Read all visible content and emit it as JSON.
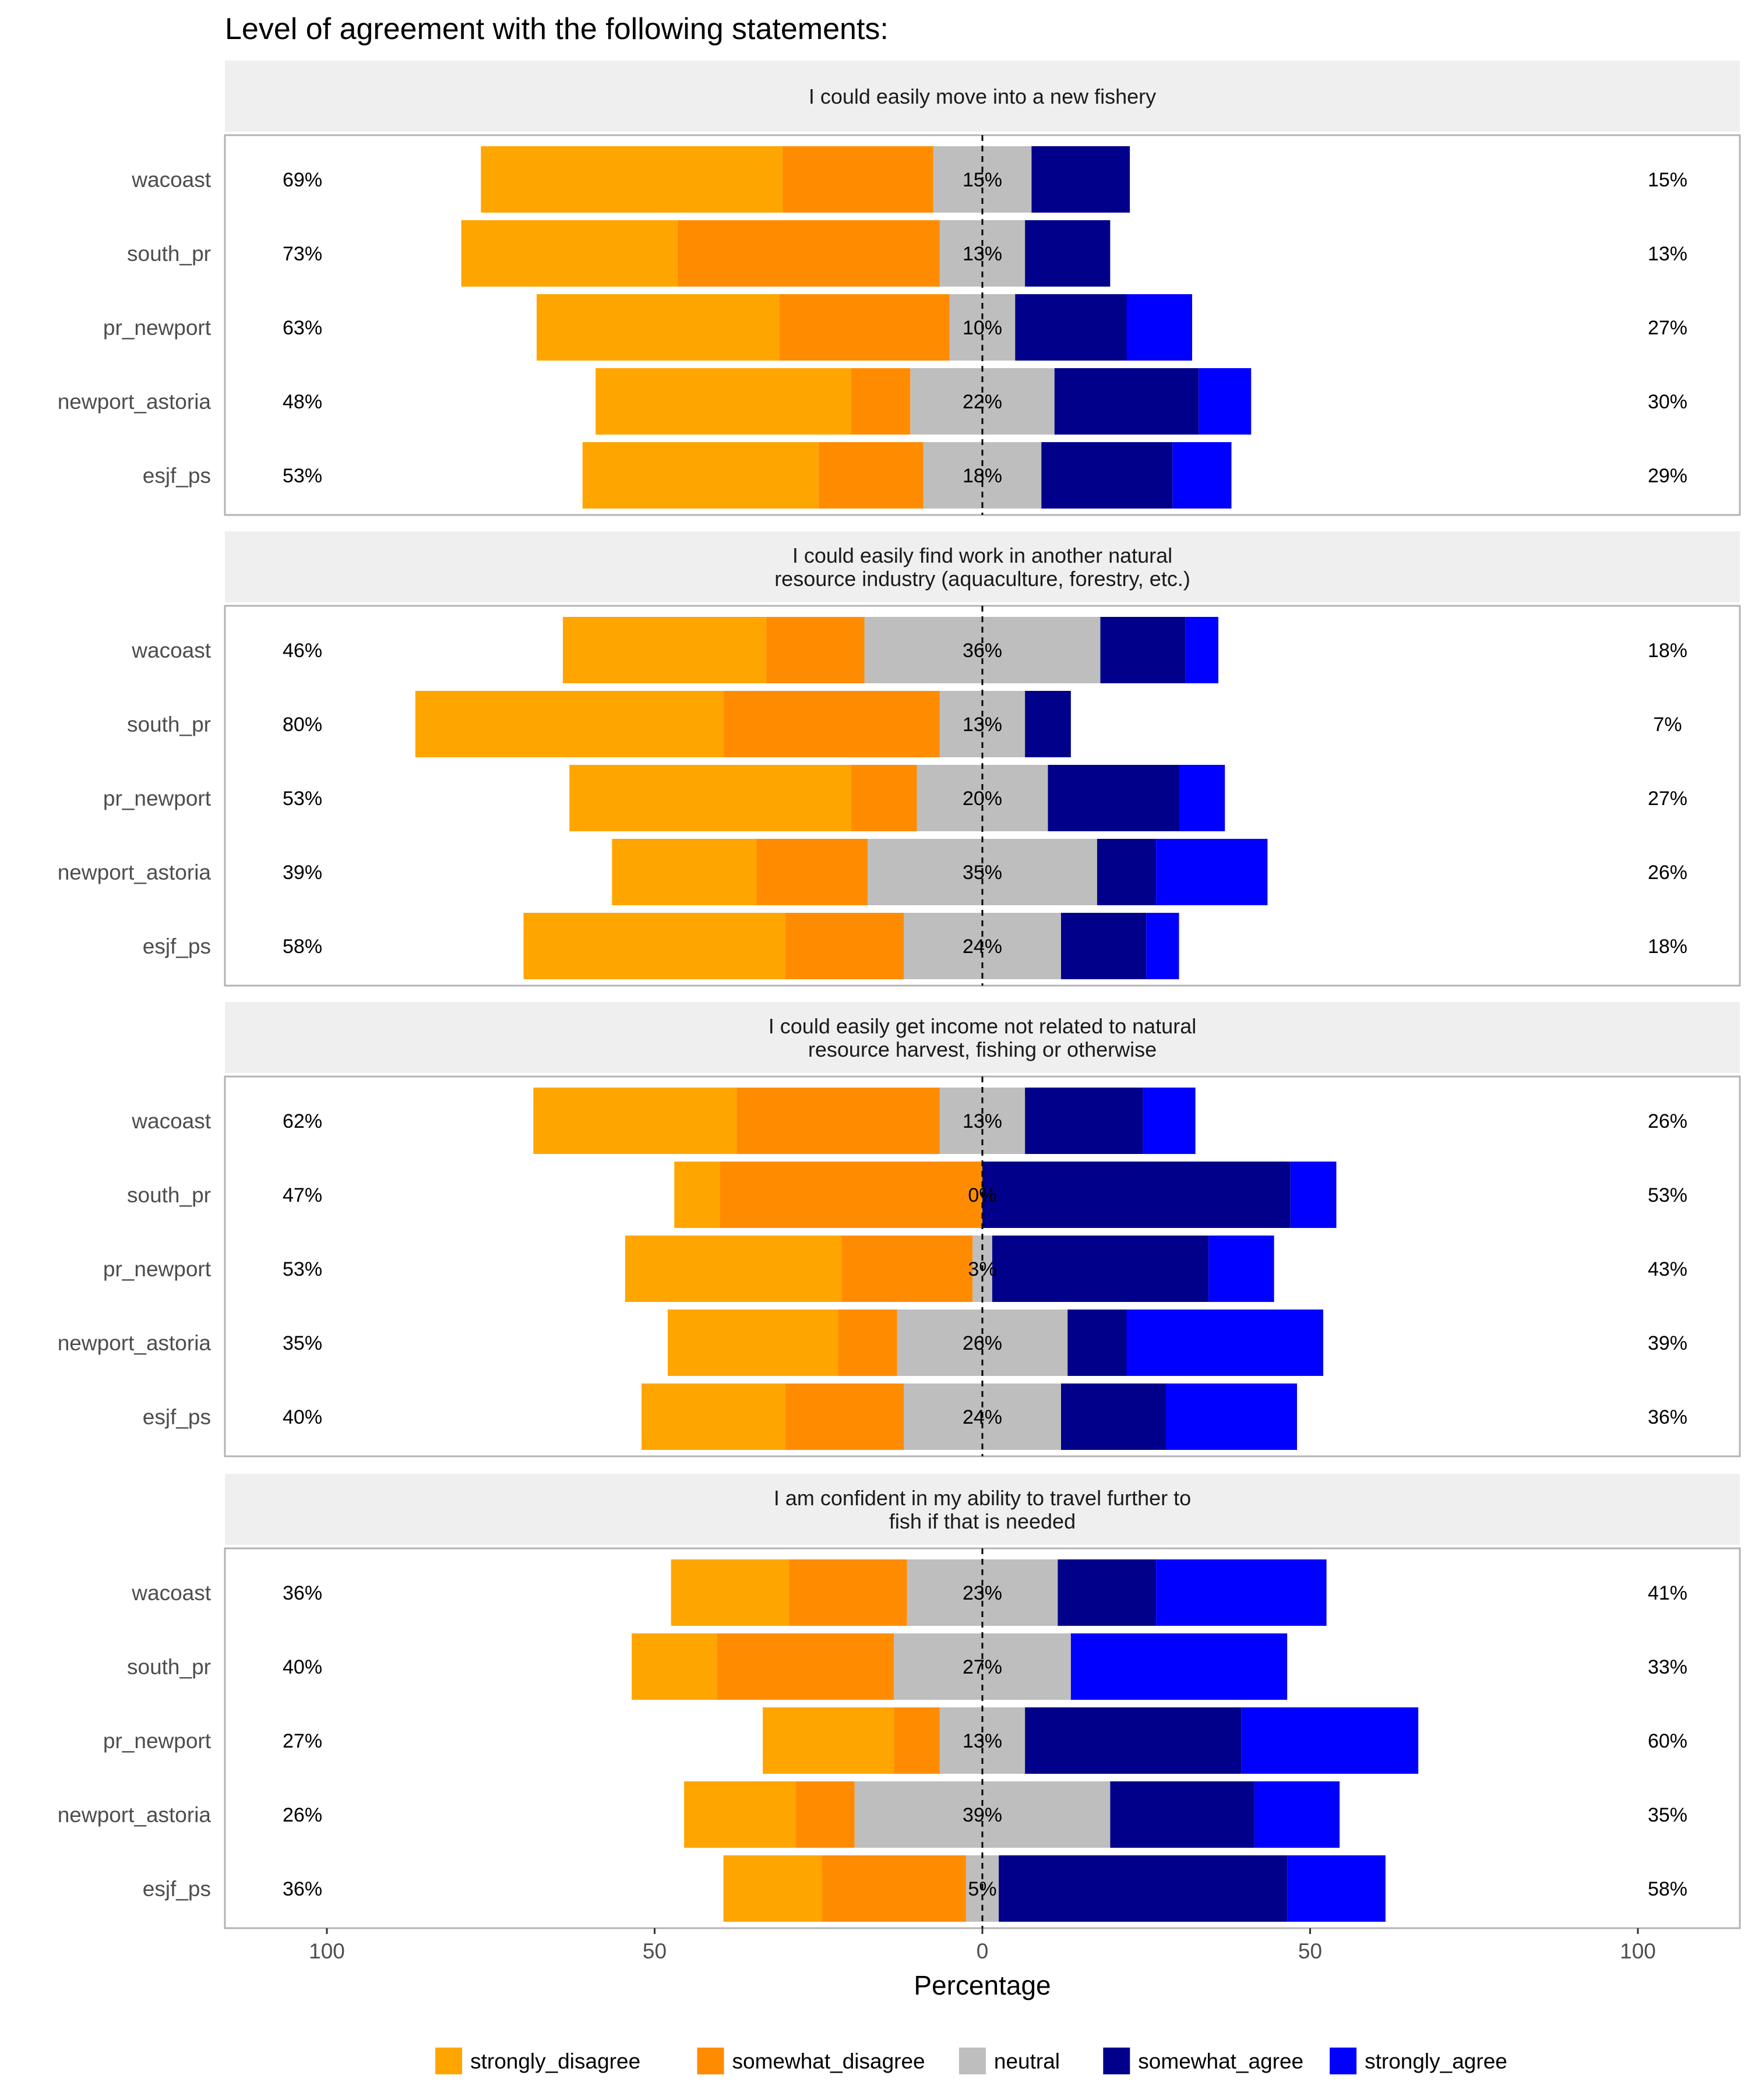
{
  "chart_data": {
    "type": "bar",
    "orientation": "horizontal",
    "stacking": "diverging",
    "title": "Level of agreement with the following statements:",
    "xlabel": "Percentage",
    "ylabel": "",
    "xlim": [
      -100,
      100
    ],
    "x_ticks": [
      -100,
      -50,
      0,
      50,
      100
    ],
    "x_tick_labels": [
      "100",
      "50",
      "0",
      "50",
      "100"
    ],
    "grid": false,
    "legend_position": "bottom",
    "categories": [
      "wacoast",
      "south_pr",
      "pr_newport",
      "newport_astoria",
      "esjf_ps"
    ],
    "levels": [
      {
        "name": "strongly_disagree",
        "color": "#FFA500"
      },
      {
        "name": "somewhat_disagree",
        "color": "#FF8C00"
      },
      {
        "name": "neutral",
        "color": "#BEBEBE"
      },
      {
        "name": "somewhat_agree",
        "color": "#00008B"
      },
      {
        "name": "strongly_agree",
        "color": "#0000FF"
      }
    ],
    "panels": [
      {
        "title": "I could easily move into a new fishery",
        "rows": [
          {
            "values": [
              46,
              23,
              15,
              15,
              0
            ],
            "left_label": "69%",
            "neutral_label": "15%",
            "right_label": "15%"
          },
          {
            "values": [
              33,
              40,
              13,
              13,
              0
            ],
            "left_label": "73%",
            "neutral_label": "13%",
            "right_label": "13%"
          },
          {
            "values": [
              37,
              26,
              10,
              17,
              10
            ],
            "left_label": "63%",
            "neutral_label": "10%",
            "right_label": "27%"
          },
          {
            "values": [
              39,
              9,
              22,
              22,
              8
            ],
            "left_label": "48%",
            "neutral_label": "22%",
            "right_label": "30%"
          },
          {
            "values": [
              36,
              16,
              18,
              20,
              9
            ],
            "left_label": "53%",
            "neutral_label": "18%",
            "right_label": "29%"
          }
        ]
      },
      {
        "title": "I could easily find work in another natural resource industry (aquaculture, forestry, etc.)",
        "title_lines": [
          "I could easily find work in another natural",
          "resource industry (aquaculture, forestry, etc.)"
        ],
        "rows": [
          {
            "values": [
              31,
              15,
              36,
              13,
              5
            ],
            "left_label": "46%",
            "neutral_label": "36%",
            "right_label": "18%"
          },
          {
            "values": [
              47,
              33,
              13,
              7,
              0
            ],
            "left_label": "80%",
            "neutral_label": "13%",
            "right_label": "7%"
          },
          {
            "values": [
              43,
              10,
              20,
              20,
              7
            ],
            "left_label": "53%",
            "neutral_label": "20%",
            "right_label": "27%"
          },
          {
            "values": [
              22,
              17,
              35,
              9,
              17
            ],
            "left_label": "39%",
            "neutral_label": "35%",
            "right_label": "26%"
          },
          {
            "values": [
              40,
              18,
              24,
              13,
              5
            ],
            "left_label": "58%",
            "neutral_label": "24%",
            "right_label": "18%"
          }
        ]
      },
      {
        "title": "I could easily get income not related to natural resource harvest, fishing or otherwise",
        "title_lines": [
          "I could easily get income not related to natural",
          "resource harvest, fishing or otherwise"
        ],
        "rows": [
          {
            "values": [
              31,
              31,
              13,
              18,
              8
            ],
            "left_label": "62%",
            "neutral_label": "13%",
            "right_label": "26%"
          },
          {
            "values": [
              7,
              40,
              0,
              47,
              7
            ],
            "left_label": "47%",
            "neutral_label": "0%",
            "right_label": "53%"
          },
          {
            "values": [
              33,
              20,
              3,
              33,
              10
            ],
            "left_label": "53%",
            "neutral_label": "3%",
            "right_label": "43%"
          },
          {
            "values": [
              26,
              9,
              26,
              9,
              30
            ],
            "left_label": "35%",
            "neutral_label": "26%",
            "right_label": "39%"
          },
          {
            "values": [
              22,
              18,
              24,
              16,
              20
            ],
            "left_label": "40%",
            "neutral_label": "24%",
            "right_label": "36%"
          }
        ]
      },
      {
        "title": "I am confident in my ability to travel further to fish if that is needed",
        "title_lines": [
          "I am confident in my ability to travel further to",
          "fish if that is needed"
        ],
        "rows": [
          {
            "values": [
              18,
              18,
              23,
              15,
              26
            ],
            "left_label": "36%",
            "neutral_label": "23%",
            "right_label": "41%"
          },
          {
            "values": [
              13,
              27,
              27,
              0,
              33
            ],
            "left_label": "40%",
            "neutral_label": "27%",
            "right_label": "33%"
          },
          {
            "values": [
              20,
              7,
              13,
              33,
              27
            ],
            "left_label": "27%",
            "neutral_label": "13%",
            "right_label": "60%"
          },
          {
            "values": [
              17,
              9,
              39,
              22,
              13
            ],
            "left_label": "26%",
            "neutral_label": "39%",
            "right_label": "35%"
          },
          {
            "values": [
              15,
              22,
              5,
              44,
              15
            ],
            "left_label": "36%",
            "neutral_label": "5%",
            "right_label": "58%"
          }
        ]
      }
    ]
  }
}
